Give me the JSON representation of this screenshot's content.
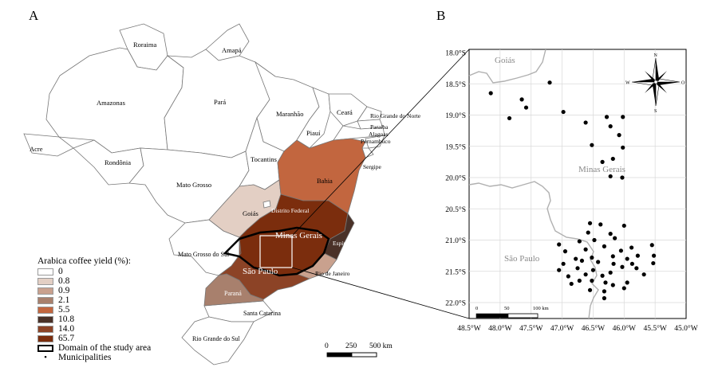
{
  "panels": {
    "a": "A",
    "b": "B"
  },
  "colors": {
    "c0": "#ffffff",
    "c08": "#e3cfc4",
    "c09": "#c9a18e",
    "c21": "#a8806d",
    "c55": "#c2663f",
    "c108": "#4a3128",
    "c140": "#8c4326",
    "c657": "#7b2d0d",
    "border": "#555555"
  },
  "brazil_labels": {
    "roraima": "Roraima",
    "amapa": "Amapá",
    "amazonas": "Amazonas",
    "para": "Pará",
    "maranhao": "Maranhão",
    "ceara": "Ceará",
    "rgn": "Rio Grande do Norte",
    "paraiba": "Paraíba",
    "pernambuco": "Pernambuco",
    "piaui": "Piauí",
    "alagoas": "Alagoas",
    "sergipe": "Sergipe",
    "acre": "Acre",
    "rondonia": "Rondônia",
    "tocantins": "Tocantins",
    "bahia": "Bahia",
    "mato_grosso": "Mato Grosso",
    "goias": "Goiás",
    "df": "Distrito Federal",
    "minas": "Minas Gerais",
    "es": "Espírito Santo",
    "ms": "Mato Grosso do Sul",
    "sp": "São Paulo",
    "rj": "Rio de Janeiro",
    "parana": "Paraná",
    "sc": "Santa Catarina",
    "rs": "Rio Grande do Sul"
  },
  "scale_a": {
    "ticks": [
      "0",
      "250",
      "500 km"
    ]
  },
  "legend": {
    "title": "Arabica coffee yield (%):",
    "entries": [
      {
        "label": "0",
        "color": "#ffffff"
      },
      {
        "label": "0.8",
        "color": "#e3cfc4"
      },
      {
        "label": "0.9",
        "color": "#c9a18e"
      },
      {
        "label": "2.1",
        "color": "#a8806d"
      },
      {
        "label": "5.5",
        "color": "#c2663f"
      },
      {
        "label": "10.8",
        "color": "#4a3128"
      },
      {
        "label": "14.0",
        "color": "#8c4326"
      },
      {
        "label": "65.7",
        "color": "#7b2d0d"
      }
    ],
    "domain_label": "Domain of the study area",
    "dot_symbol": "•",
    "municipalities_label": "Municipalities"
  },
  "panel_b": {
    "lat_labels": [
      "18.0°S",
      "18.5°S",
      "19.0°S",
      "19.5°S",
      "20.0°S",
      "20.5°S",
      "21.0°S",
      "21.5°S",
      "22.0°S"
    ],
    "lon_labels": [
      "48.5°W",
      "48.0°W",
      "47.5°W",
      "47.0°W",
      "46.5°W",
      "46.0°W",
      "45.5°W",
      "45.0°W"
    ],
    "region_labels": {
      "goias": "Goiás",
      "minas": "Minas Gerais",
      "sp": "São Paulo"
    },
    "scale_ticks": [
      "0",
      "50",
      "100 km"
    ],
    "compass": {
      "n": "N",
      "s": "S",
      "e": "O",
      "w": "W"
    },
    "municipalities": [
      {
        "lon": -48.15,
        "lat": 18.65
      },
      {
        "lon": -47.85,
        "lat": 19.05
      },
      {
        "lon": -47.65,
        "lat": 18.75
      },
      {
        "lon": -47.58,
        "lat": 18.88
      },
      {
        "lon": -47.2,
        "lat": 18.48
      },
      {
        "lon": -46.98,
        "lat": 18.95
      },
      {
        "lon": -46.62,
        "lat": 19.12
      },
      {
        "lon": -46.52,
        "lat": 19.48
      },
      {
        "lon": -46.28,
        "lat": 19.03
      },
      {
        "lon": -46.22,
        "lat": 19.18
      },
      {
        "lon": -46.02,
        "lat": 19.03
      },
      {
        "lon": -46.08,
        "lat": 19.32
      },
      {
        "lon": -46.02,
        "lat": 19.52
      },
      {
        "lon": -46.18,
        "lat": 19.7
      },
      {
        "lon": -46.35,
        "lat": 19.75
      },
      {
        "lon": -46.03,
        "lat": 20.0
      },
      {
        "lon": -46.22,
        "lat": 19.98
      },
      {
        "lon": -46.55,
        "lat": 20.73
      },
      {
        "lon": -46.38,
        "lat": 20.75
      },
      {
        "lon": -46.0,
        "lat": 20.77
      },
      {
        "lon": -46.58,
        "lat": 20.88
      },
      {
        "lon": -46.22,
        "lat": 20.9
      },
      {
        "lon": -46.72,
        "lat": 21.02
      },
      {
        "lon": -46.48,
        "lat": 21.0
      },
      {
        "lon": -46.15,
        "lat": 20.97
      },
      {
        "lon": -47.05,
        "lat": 21.07
      },
      {
        "lon": -46.32,
        "lat": 21.1
      },
      {
        "lon": -45.88,
        "lat": 21.12
      },
      {
        "lon": -45.55,
        "lat": 21.08
      },
      {
        "lon": -46.95,
        "lat": 21.18
      },
      {
        "lon": -46.62,
        "lat": 21.15
      },
      {
        "lon": -46.05,
        "lat": 21.17
      },
      {
        "lon": -45.78,
        "lat": 21.25
      },
      {
        "lon": -45.52,
        "lat": 21.25
      },
      {
        "lon": -46.78,
        "lat": 21.3
      },
      {
        "lon": -46.52,
        "lat": 21.28
      },
      {
        "lon": -46.18,
        "lat": 21.26
      },
      {
        "lon": -45.95,
        "lat": 21.3
      },
      {
        "lon": -46.98,
        "lat": 21.38
      },
      {
        "lon": -46.68,
        "lat": 21.33
      },
      {
        "lon": -46.42,
        "lat": 21.35
      },
      {
        "lon": -46.17,
        "lat": 21.38
      },
      {
        "lon": -45.87,
        "lat": 21.38
      },
      {
        "lon": -45.53,
        "lat": 21.37
      },
      {
        "lon": -47.05,
        "lat": 21.48
      },
      {
        "lon": -46.75,
        "lat": 21.45
      },
      {
        "lon": -46.5,
        "lat": 21.48
      },
      {
        "lon": -46.03,
        "lat": 21.43
      },
      {
        "lon": -46.22,
        "lat": 21.52
      },
      {
        "lon": -45.8,
        "lat": 21.45
      },
      {
        "lon": -46.9,
        "lat": 21.58
      },
      {
        "lon": -46.62,
        "lat": 21.55
      },
      {
        "lon": -46.35,
        "lat": 21.57
      },
      {
        "lon": -45.68,
        "lat": 21.55
      },
      {
        "lon": -46.85,
        "lat": 21.7
      },
      {
        "lon": -46.72,
        "lat": 21.65
      },
      {
        "lon": -46.52,
        "lat": 21.65
      },
      {
        "lon": -46.3,
        "lat": 21.68
      },
      {
        "lon": -46.18,
        "lat": 21.72
      },
      {
        "lon": -45.95,
        "lat": 21.68
      },
      {
        "lon": -46.55,
        "lat": 21.8
      },
      {
        "lon": -46.0,
        "lat": 21.77
      },
      {
        "lon": -46.32,
        "lat": 21.82
      },
      {
        "lon": -46.32,
        "lat": 21.93
      }
    ]
  }
}
